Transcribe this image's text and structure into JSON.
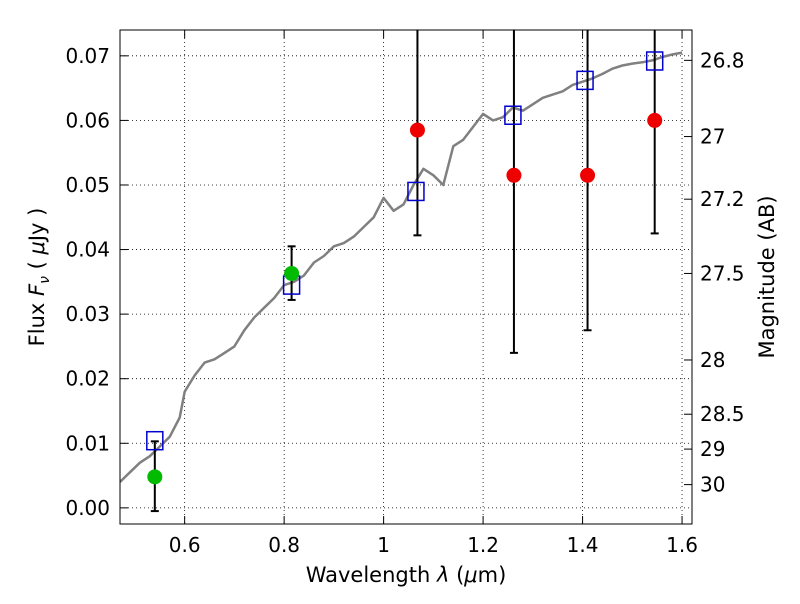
{
  "chart_data": {
    "type": "scatter",
    "title": "",
    "xlabel": "Wavelength  λ (μm)",
    "ylabel": "Flux  F_ν  ( μJy )",
    "ylabel_parts": {
      "pre": "Flux  ",
      "var": "F",
      "sub": "ν",
      "mid": "  ( ",
      "mu": "μ",
      "post": "Jy )"
    },
    "xlabel_parts": {
      "pre": "Wavelength  ",
      "var": "λ",
      "mid": " (",
      "mu": "μ",
      "post": "m)"
    },
    "y2label": "Magnitude (AB)",
    "xlim": [
      0.47,
      1.62
    ],
    "ylim": [
      -0.0025,
      0.074
    ],
    "grid": true,
    "x_ticks": [
      0.6,
      0.8,
      1.0,
      1.2,
      1.4,
      1.6
    ],
    "x_tick_labels": [
      "0.6",
      "0.8",
      "1",
      "1.2",
      "1.4",
      "1.6"
    ],
    "y_ticks": [
      0.0,
      0.01,
      0.02,
      0.03,
      0.04,
      0.05,
      0.06,
      0.07
    ],
    "y_tick_labels": [
      "0.00",
      "0.01",
      "0.02",
      "0.03",
      "0.04",
      "0.05",
      "0.06",
      "0.07"
    ],
    "y2_ticks": [
      {
        "label": "26.8",
        "flux": 0.0693
      },
      {
        "label": "27",
        "flux": 0.0575
      },
      {
        "label": "27.2",
        "flux": 0.0478
      },
      {
        "label": "27.5",
        "flux": 0.0363
      },
      {
        "label": "28",
        "flux": 0.0229
      },
      {
        "label": "28.5",
        "flux": 0.0145
      },
      {
        "label": "29",
        "flux": 0.0091
      },
      {
        "label": "30",
        "flux": 0.0036
      }
    ],
    "colors": {
      "model": "#808080",
      "model_points": "#0000cc",
      "green": "#00bb00",
      "red": "#ee0000",
      "errorbar": "#000000",
      "grid": "#000000"
    },
    "series": [
      {
        "name": "model spectrum",
        "kind": "line",
        "x": [
          0.47,
          0.49,
          0.51,
          0.53,
          0.55,
          0.57,
          0.59,
          0.6,
          0.62,
          0.64,
          0.66,
          0.68,
          0.7,
          0.72,
          0.74,
          0.76,
          0.78,
          0.8,
          0.82,
          0.84,
          0.86,
          0.88,
          0.9,
          0.92,
          0.94,
          0.96,
          0.98,
          1.0,
          1.02,
          1.04,
          1.06,
          1.08,
          1.1,
          1.12,
          1.14,
          1.16,
          1.18,
          1.2,
          1.22,
          1.24,
          1.26,
          1.28,
          1.3,
          1.32,
          1.34,
          1.36,
          1.38,
          1.4,
          1.42,
          1.44,
          1.46,
          1.48,
          1.5,
          1.52,
          1.54,
          1.56,
          1.58,
          1.6
        ],
        "y": [
          0.004,
          0.0055,
          0.007,
          0.008,
          0.0095,
          0.011,
          0.014,
          0.018,
          0.0205,
          0.0225,
          0.023,
          0.024,
          0.025,
          0.0275,
          0.0295,
          0.031,
          0.0325,
          0.0345,
          0.035,
          0.036,
          0.038,
          0.039,
          0.0405,
          0.041,
          0.042,
          0.0435,
          0.045,
          0.048,
          0.046,
          0.047,
          0.05,
          0.0525,
          0.0515,
          0.05,
          0.056,
          0.057,
          0.059,
          0.061,
          0.06,
          0.0605,
          0.062,
          0.0615,
          0.0625,
          0.0635,
          0.064,
          0.0645,
          0.0655,
          0.066,
          0.0665,
          0.0672,
          0.068,
          0.0685,
          0.0688,
          0.069,
          0.0693,
          0.0698,
          0.0702,
          0.0705
        ]
      },
      {
        "name": "model photometry",
        "kind": "open-square",
        "x": [
          0.54,
          0.815,
          1.065,
          1.26,
          1.405,
          1.545
        ],
        "y": [
          0.0104,
          0.0345,
          0.049,
          0.0608,
          0.0662,
          0.0692
        ]
      },
      {
        "name": "detections",
        "kind": "filled-circle",
        "color": "green",
        "x": [
          0.54,
          0.815
        ],
        "y": [
          0.0048,
          0.0363
        ],
        "yerr_low": [
          -0.0005,
          0.0322
        ],
        "yerr_high": [
          0.0103,
          0.0405
        ]
      },
      {
        "name": "upper limits",
        "kind": "filled-circle",
        "color": "red",
        "x": [
          1.068,
          1.262,
          1.41,
          1.545
        ],
        "y": [
          0.0585,
          0.0515,
          0.0515,
          0.06
        ],
        "yerr_low": [
          0.0422,
          0.024,
          0.0275,
          0.0425
        ],
        "yerr_high": [
          0.074,
          0.074,
          0.074,
          0.074
        ]
      }
    ]
  }
}
